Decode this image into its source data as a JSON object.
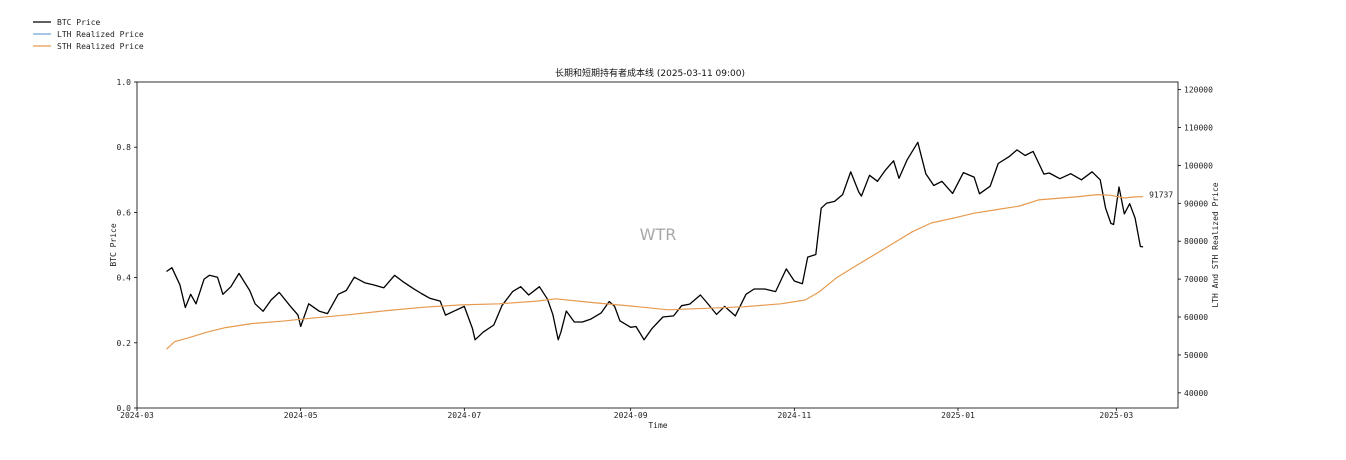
{
  "chart_data": {
    "type": "line",
    "title": "长期和短期持有者成本线 (2025-03-11 09:00)",
    "xlabel": "Time",
    "ylabel_left": "BTC Price",
    "ylabel_right": "LTH And STH Realized Price",
    "watermark": "WTR",
    "x_range": [
      "2024-03-01",
      "2025-03-24"
    ],
    "x_ticks": [
      "2024-03",
      "2024-05",
      "2024-07",
      "2024-09",
      "2024-11",
      "2025-01",
      "2025-03"
    ],
    "y_left_range": [
      0.0,
      1.0
    ],
    "y_left_ticks": [
      "0.0",
      "0.2",
      "0.4",
      "0.6",
      "0.8",
      "1.0"
    ],
    "y_right_range": [
      36000,
      122000
    ],
    "y_right_ticks": [
      "40000",
      "50000",
      "60000",
      "70000",
      "80000",
      "90000",
      "100000",
      "110000",
      "120000"
    ],
    "legend_position": "top-left (outside plot)",
    "grid": false,
    "annotation": {
      "text": "91737",
      "date": "2025-03-11",
      "value": 91737
    },
    "series": [
      {
        "name": "BTC Price",
        "color": "#000000",
        "points": [
          [
            "2024-03-12",
            72000
          ],
          [
            "2024-03-14",
            73000
          ],
          [
            "2024-03-17",
            68500
          ],
          [
            "2024-03-19",
            62500
          ],
          [
            "2024-03-21",
            66000
          ],
          [
            "2024-03-23",
            63500
          ],
          [
            "2024-03-26",
            70000
          ],
          [
            "2024-03-28",
            71000
          ],
          [
            "2024-03-31",
            70500
          ],
          [
            "2024-04-02",
            66000
          ],
          [
            "2024-04-05",
            68000
          ],
          [
            "2024-04-08",
            71500
          ],
          [
            "2024-04-12",
            67000
          ],
          [
            "2024-04-14",
            63500
          ],
          [
            "2024-04-17",
            61500
          ],
          [
            "2024-04-20",
            64500
          ],
          [
            "2024-04-23",
            66500
          ],
          [
            "2024-04-27",
            63000
          ],
          [
            "2024-04-30",
            60500
          ],
          [
            "2024-05-01",
            57500
          ],
          [
            "2024-05-04",
            63500
          ],
          [
            "2024-05-08",
            61500
          ],
          [
            "2024-05-11",
            60900
          ],
          [
            "2024-05-15",
            66000
          ],
          [
            "2024-05-18",
            67000
          ],
          [
            "2024-05-21",
            70500
          ],
          [
            "2024-05-25",
            69000
          ],
          [
            "2024-05-28",
            68500
          ],
          [
            "2024-06-01",
            67700
          ],
          [
            "2024-06-05",
            71000
          ],
          [
            "2024-06-08",
            69400
          ],
          [
            "2024-06-12",
            67500
          ],
          [
            "2024-06-15",
            66200
          ],
          [
            "2024-06-18",
            65000
          ],
          [
            "2024-06-22",
            64200
          ],
          [
            "2024-06-24",
            60500
          ],
          [
            "2024-06-27",
            61500
          ],
          [
            "2024-07-01",
            62800
          ],
          [
            "2024-07-04",
            57000
          ],
          [
            "2024-07-05",
            54000
          ],
          [
            "2024-07-08",
            56000
          ],
          [
            "2024-07-12",
            57900
          ],
          [
            "2024-07-15",
            63000
          ],
          [
            "2024-07-19",
            66700
          ],
          [
            "2024-07-22",
            68000
          ],
          [
            "2024-07-25",
            65800
          ],
          [
            "2024-07-29",
            68000
          ],
          [
            "2024-08-01",
            64700
          ],
          [
            "2024-08-03",
            60600
          ],
          [
            "2024-08-05",
            54000
          ],
          [
            "2024-08-06",
            56000
          ],
          [
            "2024-08-08",
            61600
          ],
          [
            "2024-08-11",
            58700
          ],
          [
            "2024-08-14",
            58700
          ],
          [
            "2024-08-17",
            59400
          ],
          [
            "2024-08-21",
            61100
          ],
          [
            "2024-08-24",
            64100
          ],
          [
            "2024-08-26",
            62800
          ],
          [
            "2024-08-28",
            59000
          ],
          [
            "2024-09-01",
            57300
          ],
          [
            "2024-09-03",
            57500
          ],
          [
            "2024-09-06",
            54000
          ],
          [
            "2024-09-09",
            57000
          ],
          [
            "2024-09-13",
            60000
          ],
          [
            "2024-09-17",
            60300
          ],
          [
            "2024-09-20",
            63000
          ],
          [
            "2024-09-23",
            63400
          ],
          [
            "2024-09-27",
            65800
          ],
          [
            "2024-09-30",
            63300
          ],
          [
            "2024-10-03",
            60700
          ],
          [
            "2024-10-06",
            62800
          ],
          [
            "2024-10-10",
            60300
          ],
          [
            "2024-10-14",
            66000
          ],
          [
            "2024-10-17",
            67400
          ],
          [
            "2024-10-21",
            67400
          ],
          [
            "2024-10-25",
            66700
          ],
          [
            "2024-10-29",
            72700
          ],
          [
            "2024-11-01",
            69500
          ],
          [
            "2024-11-04",
            68800
          ],
          [
            "2024-11-06",
            75800
          ],
          [
            "2024-11-09",
            76500
          ],
          [
            "2024-11-11",
            88700
          ],
          [
            "2024-11-13",
            90000
          ],
          [
            "2024-11-16",
            90500
          ],
          [
            "2024-11-19",
            92300
          ],
          [
            "2024-11-22",
            98300
          ],
          [
            "2024-11-25",
            93000
          ],
          [
            "2024-11-26",
            91900
          ],
          [
            "2024-11-29",
            97400
          ],
          [
            "2024-12-02",
            95800
          ],
          [
            "2024-12-05",
            98800
          ],
          [
            "2024-12-08",
            101200
          ],
          [
            "2024-12-10",
            96600
          ],
          [
            "2024-12-13",
            101400
          ],
          [
            "2024-12-17",
            106100
          ],
          [
            "2024-12-20",
            97800
          ],
          [
            "2024-12-23",
            94700
          ],
          [
            "2024-12-26",
            95800
          ],
          [
            "2024-12-30",
            92600
          ],
          [
            "2025-01-03",
            98100
          ],
          [
            "2025-01-07",
            96900
          ],
          [
            "2025-01-09",
            92500
          ],
          [
            "2025-01-13",
            94500
          ],
          [
            "2025-01-16",
            100500
          ],
          [
            "2025-01-20",
            102300
          ],
          [
            "2025-01-23",
            104100
          ],
          [
            "2025-01-26",
            102600
          ],
          [
            "2025-01-29",
            103700
          ],
          [
            "2025-02-02",
            97700
          ],
          [
            "2025-02-04",
            98000
          ],
          [
            "2025-02-08",
            96500
          ],
          [
            "2025-02-12",
            97800
          ],
          [
            "2025-02-16",
            96200
          ],
          [
            "2025-02-20",
            98300
          ],
          [
            "2025-02-23",
            96200
          ],
          [
            "2025-02-25",
            88700
          ],
          [
            "2025-02-27",
            84700
          ],
          [
            "2025-02-28",
            84400
          ],
          [
            "2025-03-02",
            94300
          ],
          [
            "2025-03-04",
            87200
          ],
          [
            "2025-03-06",
            89900
          ],
          [
            "2025-03-08",
            86100
          ],
          [
            "2025-03-10",
            78600
          ],
          [
            "2025-03-11",
            78500
          ]
        ]
      },
      {
        "name": "LTH Realized Price",
        "color": "#6fa8dc",
        "points": []
      },
      {
        "name": "STH Realized Price",
        "color": "#e69a4e",
        "points": [
          [
            "2024-03-12",
            51500
          ],
          [
            "2024-03-15",
            53500
          ],
          [
            "2024-03-20",
            54500
          ],
          [
            "2024-03-27",
            56000
          ],
          [
            "2024-04-03",
            57200
          ],
          [
            "2024-04-13",
            58300
          ],
          [
            "2024-04-24",
            58900
          ],
          [
            "2024-05-05",
            59700
          ],
          [
            "2024-05-19",
            60600
          ],
          [
            "2024-06-02",
            61700
          ],
          [
            "2024-06-16",
            62600
          ],
          [
            "2024-06-30",
            63200
          ],
          [
            "2024-07-14",
            63500
          ],
          [
            "2024-07-28",
            64200
          ],
          [
            "2024-08-04",
            64800
          ],
          [
            "2024-08-18",
            63800
          ],
          [
            "2024-09-01",
            62900
          ],
          [
            "2024-09-15",
            61900
          ],
          [
            "2024-09-29",
            62300
          ],
          [
            "2024-10-13",
            62700
          ],
          [
            "2024-10-27",
            63500
          ],
          [
            "2024-11-05",
            64500
          ],
          [
            "2024-11-10",
            66500
          ],
          [
            "2024-11-17",
            70500
          ],
          [
            "2024-11-24",
            73500
          ],
          [
            "2024-12-01",
            76500
          ],
          [
            "2024-12-08",
            79500
          ],
          [
            "2024-12-15",
            82500
          ],
          [
            "2024-12-22",
            84800
          ],
          [
            "2024-12-31",
            86200
          ],
          [
            "2025-01-07",
            87400
          ],
          [
            "2025-01-16",
            88400
          ],
          [
            "2025-01-24",
            89300
          ],
          [
            "2025-01-31",
            90900
          ],
          [
            "2025-02-07",
            91300
          ],
          [
            "2025-02-14",
            91700
          ],
          [
            "2025-02-22",
            92300
          ],
          [
            "2025-02-27",
            92100
          ],
          [
            "2025-03-04",
            91400
          ],
          [
            "2025-03-08",
            91700
          ],
          [
            "2025-03-11",
            91737
          ]
        ]
      }
    ]
  }
}
